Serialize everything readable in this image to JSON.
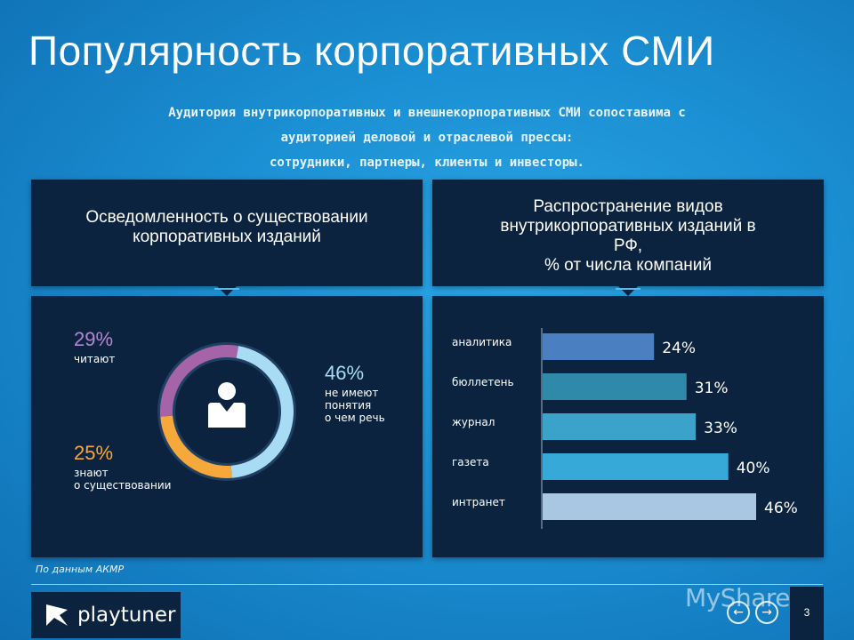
{
  "title": "Популярность корпоративных СМИ",
  "subtitle": {
    "line1": "Аудитория внутрикорпоративных и внешнекорпоративных СМИ сопоставима с",
    "line2": "аудиторией деловой и отраслевой прессы:",
    "line3": "сотрудники, партнеры, клиенты и инвесторы."
  },
  "left_panel": {
    "header_line1": "Осведомленность о существовании",
    "header_line2": "корпоративных изданий",
    "stats": {
      "read_pct": "29%",
      "read_label": "читают",
      "know_pct": "25%",
      "know_label_1": "знают",
      "know_label_2": "о существовании",
      "none_pct": "46%",
      "none_label_1": "не имеют",
      "none_label_2": "понятия",
      "none_label_3": "о чем речь"
    },
    "icon": "person-icon"
  },
  "right_panel": {
    "header_line1": "Распространение видов",
    "header_line2": "внутрикорпоративных изданий в",
    "header_line3": "РФ,",
    "header_line4": "% от числа компаний"
  },
  "chart_data": [
    {
      "type": "pie",
      "title": "Осведомленность о существовании корпоративных изданий",
      "categories": [
        "не имеют понятия о чем речь",
        "знают о существовании",
        "читают"
      ],
      "values": [
        46,
        25,
        29
      ],
      "colors": [
        "#a8dcf4",
        "#f7a83a",
        "#a564a8"
      ]
    },
    {
      "type": "bar",
      "orientation": "horizontal",
      "title": "Распространение видов внутрикорпоративных изданий в РФ, % от числа компаний",
      "categories": [
        "аналитика",
        "бюллетень",
        "журнал",
        "газета",
        "интранет"
      ],
      "values": [
        24,
        31,
        33,
        40,
        46
      ],
      "value_labels": [
        "24%",
        "31%",
        "33%",
        "40%",
        "46%"
      ],
      "colors": [
        "#4a7fc1",
        "#2e8aa8",
        "#3ba3c9",
        "#37a9d8",
        "#a9c6e3"
      ],
      "xlim": [
        0,
        46
      ]
    }
  ],
  "source": "По данным АКМР",
  "footer": {
    "logo_text": "playtuner",
    "page_number": "3",
    "watermark": "MyShared",
    "prev_icon": "arrow-left-icon",
    "next_icon": "arrow-right-icon"
  },
  "colors": {
    "panel": "#0c2340",
    "accent": "#1b8fd3",
    "read": "#b18ad1",
    "know": "#f7a83a",
    "none": "#a8dcf4"
  }
}
